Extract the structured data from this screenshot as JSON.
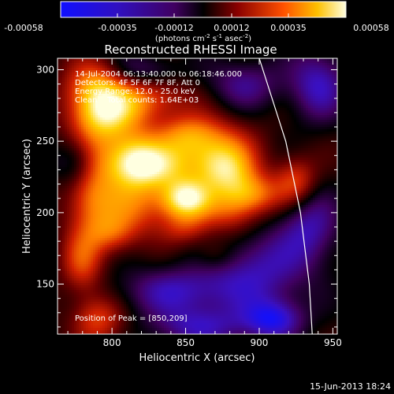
{
  "colorbar": {
    "ticks": [
      "-0.00058",
      "-0.00035",
      "-0.00012",
      "0.00012",
      "0.00035",
      "0.00058"
    ],
    "unit_label": "(photons cm",
    "unit_sup1": "-2",
    "unit_mid": " s",
    "unit_sup2": "-1",
    "unit_mid2": " asec",
    "unit_sup3": "-2",
    "unit_end": ")"
  },
  "plot": {
    "title": "Reconstructed RHESSI Image",
    "annotations": [
      "14-Jul-2004 06:13:40.000 to 06:18:46.000",
      "Detectors: 4F 5F 6F 7F 8F, Att 0",
      "Energy Range: 12.0 - 25.0 keV",
      "Clean    Total counts: 1.64E+03"
    ],
    "peak_label": "Position of Peak = [850,209]",
    "footer_date": "15-Jun-2013 18:24"
  },
  "chart_data": {
    "type": "heatmap",
    "title": "Reconstructed RHESSI Image",
    "xlabel": "Heliocentric X (arcsec)",
    "ylabel": "Heliocentric Y (arcsec)",
    "xlim": [
      763,
      953
    ],
    "ylim": [
      115,
      308
    ],
    "x_ticks": [
      800,
      850,
      900,
      950
    ],
    "y_ticks": [
      150,
      200,
      250,
      300
    ],
    "value_range": [
      -0.00058,
      0.00058
    ],
    "colormap": [
      "#1010ff",
      "#3a10c0",
      "#400060",
      "#000000",
      "#6a0000",
      "#d02000",
      "#ff8000",
      "#ffd000",
      "#ffffe0"
    ],
    "peak": [
      850,
      209
    ],
    "blobs": [
      {
        "x": 850,
        "y": 209,
        "amp": 0.00058,
        "sx": 12,
        "sy": 10
      },
      {
        "x": 828,
        "y": 232,
        "amp": 0.00045,
        "sx": 22,
        "sy": 12
      },
      {
        "x": 815,
        "y": 240,
        "amp": 0.00035,
        "sx": 14,
        "sy": 14
      },
      {
        "x": 790,
        "y": 265,
        "amp": 0.0003,
        "sx": 14,
        "sy": 22
      },
      {
        "x": 800,
        "y": 270,
        "amp": 0.00032,
        "sx": 18,
        "sy": 12
      },
      {
        "x": 788,
        "y": 290,
        "amp": 0.00028,
        "sx": 14,
        "sy": 12
      },
      {
        "x": 825,
        "y": 280,
        "amp": 0.00025,
        "sx": 20,
        "sy": 10
      },
      {
        "x": 850,
        "y": 255,
        "amp": 0.00026,
        "sx": 14,
        "sy": 10
      },
      {
        "x": 870,
        "y": 245,
        "amp": 0.00035,
        "sx": 18,
        "sy": 14
      },
      {
        "x": 878,
        "y": 228,
        "amp": 0.00038,
        "sx": 14,
        "sy": 12
      },
      {
        "x": 895,
        "y": 213,
        "amp": 0.00034,
        "sx": 14,
        "sy": 10
      },
      {
        "x": 880,
        "y": 200,
        "amp": 0.00025,
        "sx": 14,
        "sy": 12
      },
      {
        "x": 815,
        "y": 205,
        "amp": 0.0003,
        "sx": 18,
        "sy": 14
      },
      {
        "x": 785,
        "y": 210,
        "amp": 0.0003,
        "sx": 12,
        "sy": 18
      },
      {
        "x": 800,
        "y": 185,
        "amp": 0.00025,
        "sx": 12,
        "sy": 10
      },
      {
        "x": 780,
        "y": 165,
        "amp": 0.00028,
        "sx": 10,
        "sy": 16
      },
      {
        "x": 790,
        "y": 125,
        "amp": 0.00028,
        "sx": 12,
        "sy": 12
      },
      {
        "x": 925,
        "y": 222,
        "amp": 0.00028,
        "sx": 10,
        "sy": 12
      },
      {
        "x": 850,
        "y": 188,
        "amp": 0.00018,
        "sx": 12,
        "sy": 8
      },
      {
        "x": 870,
        "y": 170,
        "amp": 0.00014,
        "sx": 10,
        "sy": 8
      },
      {
        "x": 845,
        "y": 145,
        "amp": -0.0003,
        "sx": 28,
        "sy": 12
      },
      {
        "x": 900,
        "y": 160,
        "amp": -0.0003,
        "sx": 24,
        "sy": 20
      },
      {
        "x": 940,
        "y": 290,
        "amp": -0.00032,
        "sx": 14,
        "sy": 18
      },
      {
        "x": 935,
        "y": 190,
        "amp": -0.00028,
        "sx": 14,
        "sy": 18
      },
      {
        "x": 890,
        "y": 290,
        "amp": -0.00024,
        "sx": 18,
        "sy": 12
      },
      {
        "x": 775,
        "y": 235,
        "amp": -0.00022,
        "sx": 10,
        "sy": 12
      },
      {
        "x": 860,
        "y": 120,
        "amp": -0.0003,
        "sx": 22,
        "sy": 10
      },
      {
        "x": 910,
        "y": 125,
        "amp": -0.00038,
        "sx": 14,
        "sy": 10
      },
      {
        "x": 820,
        "y": 300,
        "amp": -0.00018,
        "sx": 18,
        "sy": 8
      }
    ],
    "limb": [
      [
        900,
        308
      ],
      [
        918,
        250
      ],
      [
        928,
        200
      ],
      [
        934,
        150
      ],
      [
        936,
        115
      ]
    ]
  }
}
